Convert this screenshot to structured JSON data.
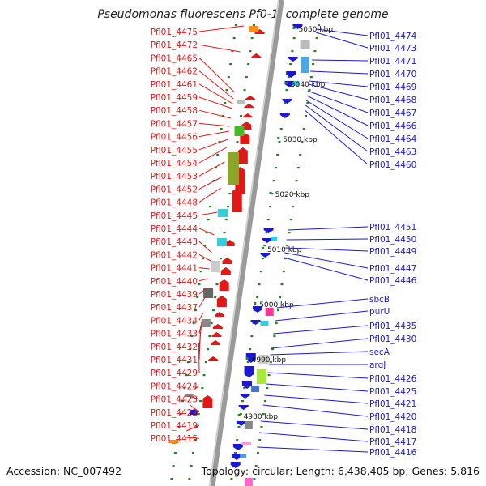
{
  "title": "Pseudomonas fluorescens Pf0-1, complete genome",
  "footer": {
    "accession": "Accession: NC_007492",
    "topology": "Topology: circular; Length: 6,438,405 bp; Genes: 5,816"
  },
  "colors": {
    "forward_gene": "#e01818",
    "reverse_gene": "#1a1acc",
    "label_left": "#e01818",
    "label_right": "#1a1acc",
    "backbone": "#9a9a9a"
  },
  "ticks": [
    "5050 kbp",
    "5040 kbp",
    "5030 kbp",
    "5020 kbp",
    "5010 kbp",
    "5000 kbp",
    "4990 kbp",
    "4980 kbp"
  ],
  "labels_left": [
    "Pfl01_4475",
    "Pfl01_4472",
    "Pfl01_4465",
    "Pfl01_4462",
    "Pfl01_4461",
    "Pfl01_4459",
    "Pfl01_4458",
    "Pfl01_4457",
    "Pfl01_4456",
    "Pfl01_4455",
    "Pfl01_4454",
    "Pfl01_4453",
    "Pfl01_4452",
    "Pfl01_4448",
    "Pfl01_4445",
    "Pfl01_4444",
    "Pfl01_4443",
    "Pfl01_4442",
    "Pfl01_4441",
    "Pfl01_4440",
    "Pfl01_4439",
    "Pfl01_4437",
    "Pfl01_4434",
    "Pfl01_4433",
    "Pfl01_4432",
    "Pfl01_4431",
    "Pfl01_4429",
    "Pfl01_4424",
    "Pfl01_4423",
    "Pfl01_4422",
    "Pfl01_4419",
    "Pfl01_4415"
  ],
  "labels_right": [
    "Pfl01_4474",
    "Pfl01_4473",
    "Pfl01_4471",
    "Pfl01_4470",
    "Pfl01_4469",
    "Pfl01_4468",
    "Pfl01_4467",
    "Pfl01_4466",
    "Pfl01_4464",
    "Pfl01_4463",
    "Pfl01_4460",
    "Pfl01_4451",
    "Pfl01_4450",
    "Pfl01_4449",
    "Pfl01_4447",
    "Pfl01_4446",
    "sbcB",
    "purU",
    "Pfl01_4435",
    "Pfl01_4430",
    "secA",
    "argJ",
    "Pfl01_4426",
    "Pfl01_4425",
    "Pfl01_4421",
    "Pfl01_4420",
    "Pfl01_4418",
    "Pfl01_4417",
    "Pfl01_4416"
  ]
}
